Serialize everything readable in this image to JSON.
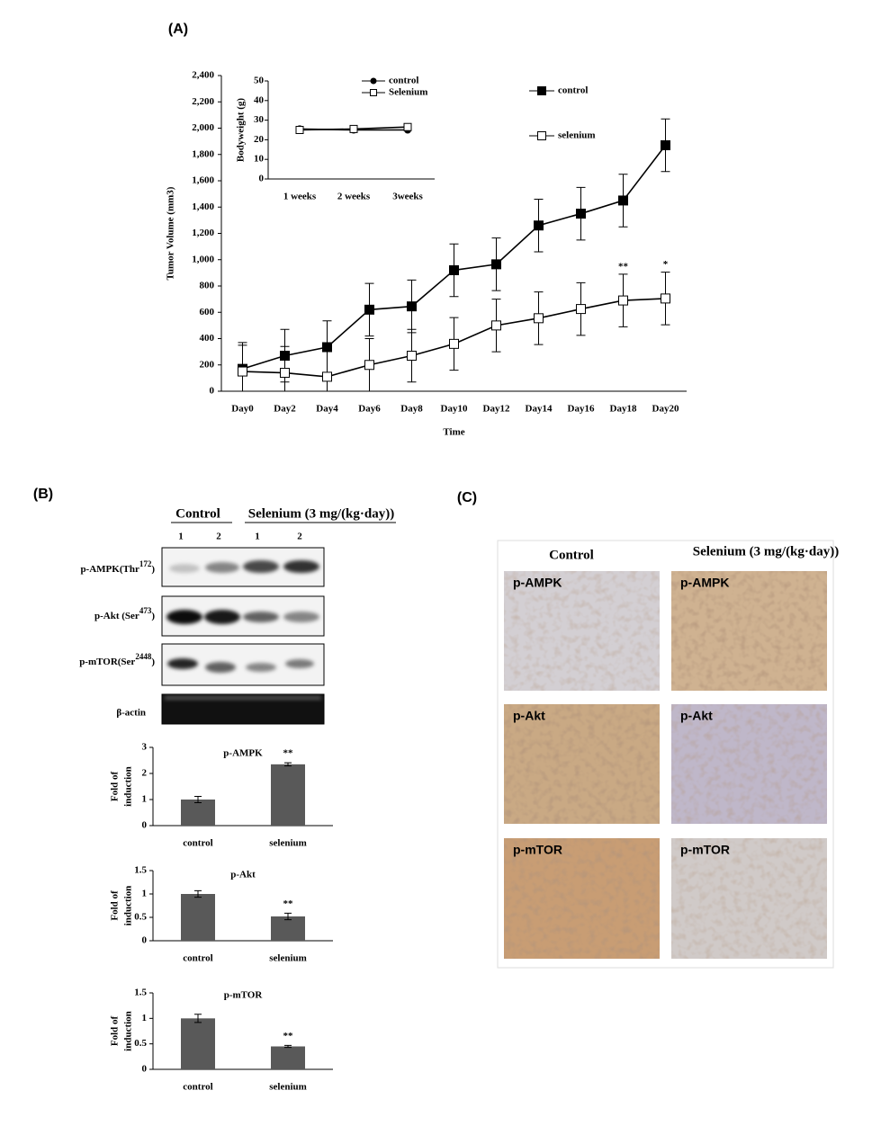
{
  "panels": {
    "a": "(A)",
    "b": "(B)",
    "c": "(C)"
  },
  "chart_data": [
    {
      "type": "line",
      "xlabel": "Time",
      "ylabel": "Tumor Volume (mm3)",
      "categories": [
        "Day0",
        "Day2",
        "Day4",
        "Day6",
        "Day8",
        "Day10",
        "Day12",
        "Day14",
        "Day16",
        "Day18",
        "Day20"
      ],
      "series": [
        {
          "name": "control",
          "color": "#000000",
          "marker": "filled-square",
          "values": [
            170,
            270,
            335,
            620,
            645,
            920,
            965,
            1260,
            1350,
            1450,
            1870
          ],
          "errors": [
            200,
            200,
            200,
            200,
            200,
            200,
            200,
            200,
            200,
            200,
            200
          ]
        },
        {
          "name": "selenium",
          "color": "#000000",
          "marker": "open-square",
          "values": [
            150,
            140,
            110,
            200,
            270,
            360,
            500,
            555,
            625,
            690,
            705
          ],
          "errors": [
            200,
            200,
            200,
            200,
            200,
            200,
            200,
            200,
            200,
            200,
            200
          ]
        }
      ],
      "ylim": [
        0,
        2400
      ],
      "yticks": [
        0,
        200,
        400,
        600,
        800,
        {
          "value": 1000,
          "label": "1,000"
        },
        {
          "value": 1200,
          "label": "1,200"
        },
        {
          "value": 1400,
          "label": "1,400"
        },
        {
          "value": 1600,
          "label": "1,600"
        },
        {
          "value": 1800,
          "label": "1,800"
        },
        {
          "value": 2000,
          "label": "2,000"
        },
        {
          "value": 2200,
          "label": "2,200"
        },
        {
          "value": 2400,
          "label": "2,400"
        }
      ],
      "annotations": [
        {
          "text": "**",
          "x": "Day18"
        },
        {
          "text": "*",
          "x": "Day20"
        }
      ]
    },
    {
      "type": "line",
      "ylabel": "Bodyweight (g)",
      "categories": [
        "1 weeks",
        "2 weeks",
        "3weeks"
      ],
      "series": [
        {
          "name": "control",
          "color": "#000000",
          "marker": "filled-circle",
          "values": [
            25.5,
            25,
            25
          ]
        },
        {
          "name": "Selenium",
          "color": "#000000",
          "marker": "open-square",
          "values": [
            25,
            25.5,
            26.5
          ]
        }
      ],
      "ylim": [
        0,
        50
      ],
      "yticks": [
        0,
        10,
        20,
        30,
        40,
        50
      ]
    },
    {
      "type": "bar",
      "title": "p-AMPK",
      "ylabel": [
        "Fold of",
        "induction"
      ],
      "categories": [
        "control",
        "selenium"
      ],
      "values": [
        1,
        2.35
      ],
      "errors": [
        0.12,
        0.06
      ],
      "color": "#595959",
      "ylim": [
        0,
        3
      ],
      "yticks": [
        0,
        1,
        2,
        3
      ],
      "annotations": [
        {
          "text": "**",
          "x": "selenium"
        }
      ]
    },
    {
      "type": "bar",
      "title": "p-Akt",
      "ylabel": [
        "Fold of",
        "induction"
      ],
      "categories": [
        "control",
        "selenium"
      ],
      "values": [
        1,
        0.52
      ],
      "errors": [
        0.07,
        0.07
      ],
      "color": "#595959",
      "ylim": [
        0,
        1.5
      ],
      "yticks": [
        0,
        0.5,
        1,
        1.5
      ],
      "annotations": [
        {
          "text": "**",
          "x": "selenium"
        }
      ]
    },
    {
      "type": "bar",
      "title": "p-mTOR",
      "ylabel": [
        "Fold of",
        "induction"
      ],
      "categories": [
        "control",
        "selenium"
      ],
      "values": [
        1,
        0.45
      ],
      "errors": [
        0.08,
        0.02
      ],
      "color": "#595959",
      "ylim": [
        0,
        1.5
      ],
      "yticks": [
        0,
        0.5,
        1,
        1.5
      ],
      "annotations": [
        {
          "text": "**",
          "x": "selenium"
        }
      ]
    }
  ],
  "blot": {
    "groups": [
      "Control",
      "Selenium (3 mg/(kg·day))"
    ],
    "lanes": [
      "1",
      "2",
      "1",
      "2"
    ],
    "rows": [
      {
        "name": "p-AMPK(Thr",
        "sup": "172",
        "end": ")"
      },
      {
        "name": "p-Akt (Ser",
        "sup": "473",
        "end": ")"
      },
      {
        "name": "p-mTOR(Ser",
        "sup": "2448",
        "end": ")"
      },
      {
        "name": "β-actin"
      }
    ]
  },
  "ihc": {
    "columns": [
      "Control",
      "Selenium (3 mg/(kg·day))"
    ],
    "rows": [
      "p-AMPK",
      "p-Akt",
      "p-mTOR"
    ]
  }
}
